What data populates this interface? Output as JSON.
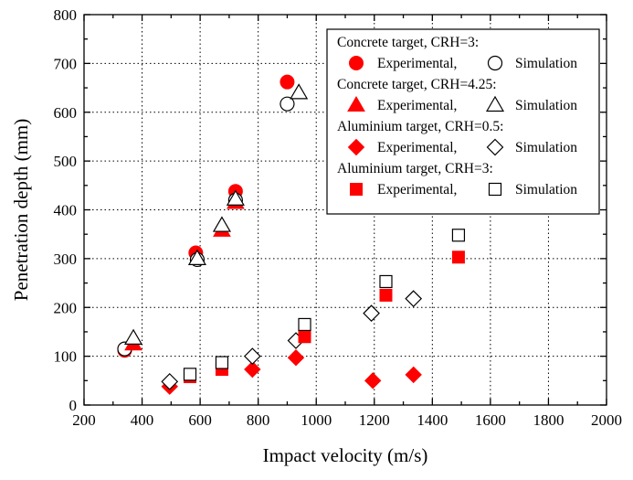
{
  "chart_data": {
    "type": "scatter",
    "xlabel": "Impact velocity (m/s)",
    "ylabel": "Penetration depth (mm)",
    "xlim": [
      200,
      2000
    ],
    "ylim": [
      0,
      800
    ],
    "xticks": [
      200,
      400,
      600,
      800,
      1000,
      1200,
      1400,
      1600,
      1800,
      2000
    ],
    "yticks": [
      0,
      100,
      200,
      300,
      400,
      500,
      600,
      700,
      800
    ],
    "grid": true,
    "legend_position": "top-right",
    "colors": {
      "experimental": "#ff0000",
      "simulation": "#000000"
    },
    "groups": [
      {
        "name": "Concrete target, CRH=3:",
        "marker": "circle",
        "experimental_label": "Experimental,",
        "simulation_label": "Simulation",
        "experimental": [
          [
            340,
            112
          ],
          [
            585,
            312
          ],
          [
            722,
            438
          ],
          [
            900,
            662
          ]
        ],
        "simulation": [
          [
            340,
            115
          ],
          [
            590,
            298
          ],
          [
            722,
            420
          ],
          [
            900,
            617
          ]
        ]
      },
      {
        "name": "Concrete target, CRH=4.25:",
        "marker": "triangle",
        "experimental_label": "Experimental,",
        "simulation_label": "Simulation",
        "experimental": [
          [
            370,
            125
          ],
          [
            675,
            358
          ],
          [
            722,
            415
          ]
        ],
        "simulation": [
          [
            370,
            137
          ],
          [
            590,
            300
          ],
          [
            675,
            368
          ],
          [
            722,
            422
          ],
          [
            940,
            640
          ]
        ]
      },
      {
        "name": "Aluminium target, CRH=0.5:",
        "marker": "diamond",
        "experimental_label": "Experimental,",
        "simulation_label": "Simulation",
        "experimental": [
          [
            495,
            38
          ],
          [
            780,
            73
          ],
          [
            930,
            97
          ],
          [
            1195,
            50
          ],
          [
            1335,
            62
          ]
        ],
        "simulation": [
          [
            495,
            48
          ],
          [
            780,
            100
          ],
          [
            930,
            132
          ],
          [
            1190,
            188
          ],
          [
            1335,
            218
          ]
        ]
      },
      {
        "name": "Aluminium target, CRH=3:",
        "marker": "square",
        "experimental_label": "Experimental,",
        "simulation_label": "Simulation",
        "experimental": [
          [
            565,
            58
          ],
          [
            675,
            73
          ],
          [
            960,
            140
          ],
          [
            1240,
            225
          ],
          [
            1490,
            303
          ]
        ],
        "simulation": [
          [
            565,
            63
          ],
          [
            675,
            87
          ],
          [
            960,
            165
          ],
          [
            1240,
            253
          ],
          [
            1490,
            348
          ]
        ]
      }
    ]
  }
}
